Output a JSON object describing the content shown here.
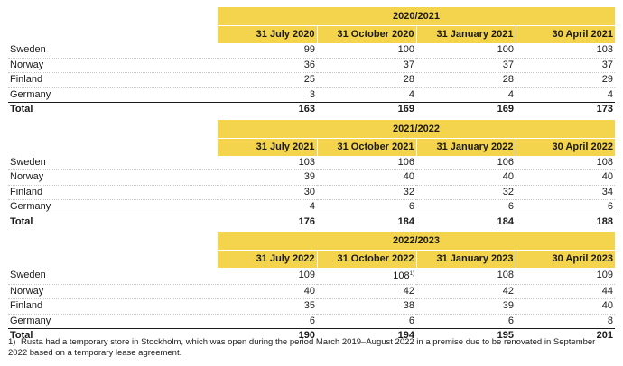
{
  "periods": [
    {
      "label": "2020/2021",
      "dates": [
        "31 July 2020",
        "31 October 2020",
        "31 January 2021",
        "30 April 2021"
      ],
      "rows": [
        {
          "country": "Sweden",
          "values": [
            "99",
            "100",
            "100",
            "103"
          ]
        },
        {
          "country": "Norway",
          "values": [
            "36",
            "37",
            "37",
            "37"
          ]
        },
        {
          "country": "Finland",
          "values": [
            "25",
            "28",
            "28",
            "29"
          ]
        },
        {
          "country": "Germany",
          "values": [
            "3",
            "4",
            "4",
            "4"
          ]
        }
      ],
      "total_label": "Total",
      "totals": [
        "163",
        "169",
        "169",
        "173"
      ]
    },
    {
      "label": "2021/2022",
      "dates": [
        "31 July 2021",
        "31 October 2021",
        "31 January 2022",
        "30 April 2022"
      ],
      "rows": [
        {
          "country": "Sweden",
          "values": [
            "103",
            "106",
            "106",
            "108"
          ]
        },
        {
          "country": "Norway",
          "values": [
            "39",
            "40",
            "40",
            "40"
          ]
        },
        {
          "country": "Finland",
          "values": [
            "30",
            "32",
            "32",
            "34"
          ]
        },
        {
          "country": "Germany",
          "values": [
            "4",
            "6",
            "6",
            "6"
          ]
        }
      ],
      "total_label": "Total",
      "totals": [
        "176",
        "184",
        "184",
        "188"
      ]
    },
    {
      "label": "2022/2023",
      "dates": [
        "31 July 2022",
        "31 October 2022",
        "31 January 2023",
        "30 April 2023"
      ],
      "rows": [
        {
          "country": "Sweden",
          "values": [
            "109",
            "108",
            "108",
            "109"
          ],
          "note_mark": "1)"
        },
        {
          "country": "Norway",
          "values": [
            "40",
            "42",
            "42",
            "44"
          ]
        },
        {
          "country": "Finland",
          "values": [
            "35",
            "38",
            "39",
            "40"
          ]
        },
        {
          "country": "Germany",
          "values": [
            "6",
            "6",
            "6",
            "8"
          ]
        }
      ],
      "total_label": "Total",
      "totals": [
        "190",
        "194",
        "195",
        "201"
      ]
    }
  ],
  "footnote": {
    "mark": "1)",
    "text": "Rusta had a temporary store in Stockholm, which was open during the period March 2019–August 2022 in a premise due to be renovated in September 2022 based on a temporary lease agreement."
  },
  "colors": {
    "header_fill": "#f4d44d",
    "text": "#1a1a1a"
  }
}
